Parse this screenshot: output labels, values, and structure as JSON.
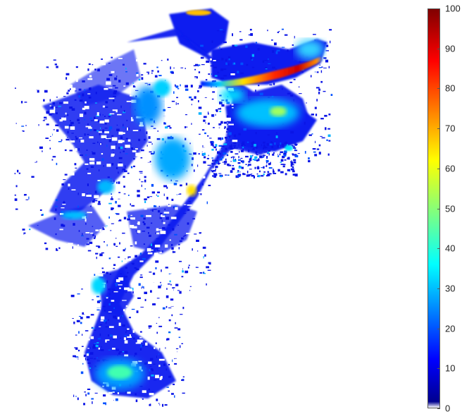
{
  "chart_data": {
    "type": "heatmap",
    "title": "",
    "xlabel": "",
    "ylabel": "",
    "colorbar": {
      "range": [
        0,
        100
      ],
      "ticks": [
        "0",
        "10",
        "20",
        "30",
        "40",
        "50",
        "60",
        "70",
        "80",
        "90",
        "100"
      ],
      "colormap": "jet",
      "zero_color": "#ffffff"
    },
    "axes_visible": false,
    "grid": false
  }
}
